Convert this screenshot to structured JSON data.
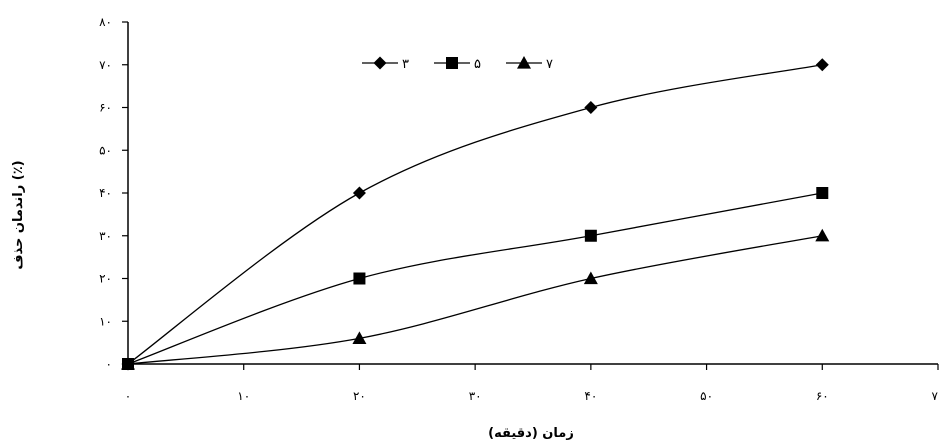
{
  "chart_data": {
    "type": "line",
    "title": "",
    "xlabel": "زمان (دقیقه)",
    "ylabel": "راندمان حذف (٪)",
    "x": [
      0,
      20,
      40,
      60
    ],
    "x_ticks": [
      0,
      10,
      20,
      30,
      40,
      50,
      60,
      70
    ],
    "y_ticks": [
      0,
      10,
      20,
      30,
      40,
      50,
      60,
      70,
      80
    ],
    "x_tick_labels": [
      "۰",
      "۱۰",
      "۲۰",
      "۳۰",
      "۴۰",
      "۵۰",
      "۶۰",
      "۷۰"
    ],
    "y_tick_labels": [
      "۰",
      "۱۰",
      "۲۰",
      "۳۰",
      "۴۰",
      "۵۰",
      "۶۰",
      "۷۰",
      "۸۰"
    ],
    "xlim": [
      0,
      70
    ],
    "ylim": [
      0,
      80
    ],
    "grid": false,
    "legend_position": "top",
    "series": [
      {
        "name": "۳",
        "marker": "diamond",
        "values": [
          0,
          40,
          60,
          70
        ]
      },
      {
        "name": "۵",
        "marker": "square",
        "values": [
          0,
          20,
          30,
          40
        ]
      },
      {
        "name": "۷",
        "marker": "triangle",
        "values": [
          0,
          6,
          20,
          30
        ]
      }
    ]
  }
}
